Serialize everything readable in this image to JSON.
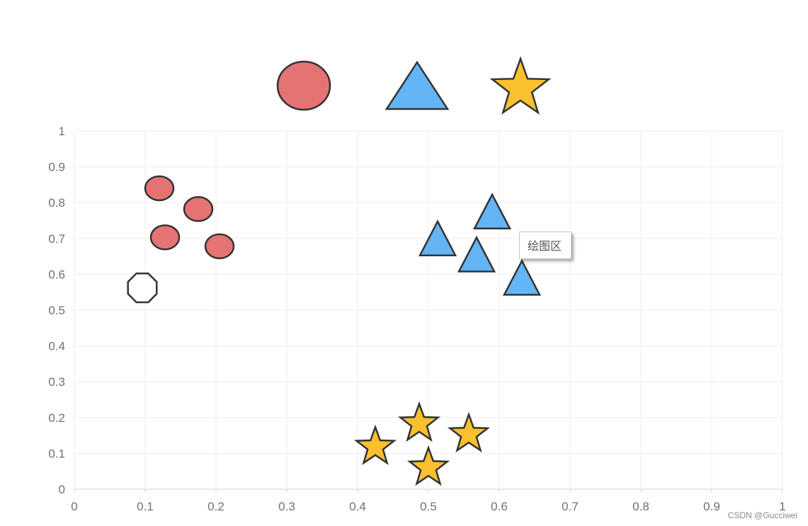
{
  "chart_data": {
    "type": "scatter",
    "xlim": [
      0,
      1
    ],
    "ylim": [
      0,
      1
    ],
    "x_ticks": [
      "0",
      "0.1",
      "0.2",
      "0.3",
      "0.4",
      "0.5",
      "0.6",
      "0.7",
      "0.8",
      "0.9",
      "1"
    ],
    "y_ticks": [
      "0",
      "0.1",
      "0.2",
      "0.3",
      "0.4",
      "0.5",
      "0.6",
      "0.7",
      "0.8",
      "0.9",
      "1"
    ],
    "grid": true,
    "legend": {
      "placement": "top-center",
      "entries": [
        {
          "symbol": "circle",
          "color": "#e57373"
        },
        {
          "symbol": "triangle",
          "color": "#64b5f6"
        },
        {
          "symbol": "star",
          "color": "#fbc02d"
        }
      ]
    },
    "series": [
      {
        "symbol": "circle",
        "color": "#e57373",
        "points": [
          {
            "x": 0.12,
            "y": 0.84
          },
          {
            "x": 0.175,
            "y": 0.782
          },
          {
            "x": 0.128,
            "y": 0.703
          },
          {
            "x": 0.205,
            "y": 0.678
          }
        ]
      },
      {
        "symbol": "triangle",
        "color": "#64b5f6",
        "points": [
          {
            "x": 0.59,
            "y": 0.76
          },
          {
            "x": 0.513,
            "y": 0.685
          },
          {
            "x": 0.568,
            "y": 0.64
          },
          {
            "x": 0.632,
            "y": 0.575
          }
        ]
      },
      {
        "symbol": "star",
        "color": "#fbc02d",
        "points": [
          {
            "x": 0.487,
            "y": 0.183
          },
          {
            "x": 0.557,
            "y": 0.153
          },
          {
            "x": 0.425,
            "y": 0.118
          },
          {
            "x": 0.5,
            "y": 0.06
          }
        ]
      },
      {
        "symbol": "octagon",
        "color": "#ffffff",
        "points": [
          {
            "x": 0.096,
            "y": 0.562
          }
        ]
      }
    ]
  },
  "tooltip": {
    "text": "绘图区"
  },
  "watermark": "CSDN @Gucciwei"
}
